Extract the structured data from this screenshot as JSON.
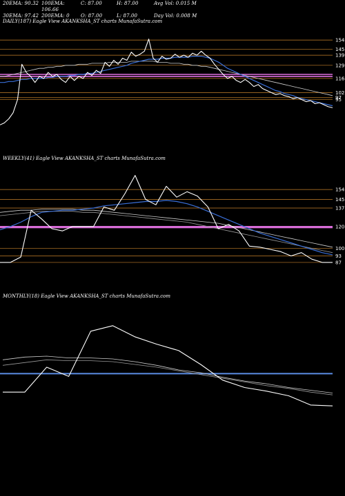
{
  "header": {
    "row1": [
      "20EMA: 90.32",
      "100EMA: 106.66",
      "C: 87.00",
      "H: 87.00",
      "Avg Vol: 0.015 M"
    ],
    "row2": [
      "30EMA: 97.42",
      "200EMA: 0",
      "O: 87.00",
      "L: 87.00",
      "Day Vol: 0.008 M"
    ]
  },
  "colors": {
    "price": "#ffffff",
    "ema_fast": "#3a6fd8",
    "ema_slow": "#cfcfcf",
    "level": "#c8822a",
    "pivot": "#e070e0",
    "monthly_line": "#5b8ee6"
  },
  "chart_data": [
    {
      "type": "line",
      "title": "DAILY(187) Eagle  View  AKANKSHA_ST charts MunafaSutra.com",
      "level_labels": [
        "154",
        "145",
        "139",
        "129",
        "116",
        "102",
        "97",
        "95"
      ],
      "levels": [
        154,
        145,
        139,
        129,
        116,
        102,
        97,
        95
      ],
      "pivot_levels": [
        120,
        118
      ],
      "ylim": [
        60,
        165
      ],
      "series": [
        {
          "role": "price",
          "values": [
            70,
            72,
            76,
            82,
            95,
            130,
            122,
            118,
            112,
            118,
            116,
            122,
            118,
            120,
            115,
            112,
            118,
            114,
            118,
            116,
            122,
            119,
            124,
            121,
            132,
            128,
            134,
            130,
            136,
            134,
            142,
            138,
            140,
            143,
            155,
            136,
            132,
            138,
            135,
            136,
            140,
            137,
            139,
            137,
            141,
            139,
            143,
            139,
            136,
            130,
            125,
            120,
            116,
            118,
            114,
            112,
            115,
            112,
            108,
            110,
            106,
            104,
            102,
            100,
            101,
            99,
            98,
            96,
            97,
            95,
            93,
            94,
            91,
            92,
            90,
            88,
            87
          ]
        },
        {
          "role": "ema_fast",
          "values": [
            112,
            112,
            113,
            113,
            114,
            115,
            115,
            116,
            116,
            116,
            116,
            117,
            117,
            118,
            118,
            118,
            119,
            119,
            120,
            120,
            121,
            121,
            122,
            123,
            124,
            125,
            126,
            127,
            128,
            129,
            131,
            132,
            133,
            134,
            135,
            135,
            135,
            136,
            136,
            136,
            137,
            137,
            137,
            137,
            138,
            138,
            138,
            137,
            136,
            134,
            132,
            129,
            126,
            124,
            122,
            120,
            118,
            116,
            114,
            112,
            110,
            108,
            106,
            104,
            103,
            101,
            100,
            99,
            97,
            96,
            95,
            94,
            93,
            92,
            91,
            90,
            89
          ]
        },
        {
          "role": "ema_slow",
          "values": [
            118,
            118,
            119,
            120,
            121,
            122,
            123,
            124,
            125,
            126,
            126,
            127,
            127,
            128,
            128,
            129,
            129,
            129,
            130,
            130,
            130,
            131,
            131,
            131,
            131,
            132,
            132,
            132,
            132,
            132,
            133,
            133,
            133,
            133,
            133,
            133,
            132,
            132,
            132,
            131,
            131,
            131,
            130,
            130,
            129,
            129,
            128,
            128,
            127,
            126,
            125,
            124,
            123,
            122,
            121,
            120,
            119,
            118,
            117,
            116,
            115,
            114,
            113,
            112,
            111,
            110,
            109,
            108,
            107,
            106,
            105,
            104,
            103,
            102,
            101,
            100,
            99
          ]
        }
      ]
    },
    {
      "type": "line",
      "title": "WEEKLY(41) Eagle  View  AKANKSHA_ST charts MunafaSutra.com",
      "level_labels": [
        "154",
        "145",
        "137",
        "120",
        "100",
        "93",
        "87"
      ],
      "levels": [
        154,
        145,
        137,
        120,
        100,
        93,
        87
      ],
      "pivot_levels": [
        120,
        119
      ],
      "ylim": [
        80,
        175
      ],
      "series": [
        {
          "role": "price",
          "values": [
            87,
            87,
            92,
            135,
            127,
            118,
            116,
            120,
            120,
            120,
            138,
            135,
            150,
            167,
            145,
            140,
            157,
            147,
            152,
            148,
            138,
            118,
            122,
            116,
            102,
            101,
            99,
            97,
            93,
            96,
            90,
            87,
            87
          ]
        },
        {
          "role": "ema_fast",
          "values": [
            117,
            120,
            124,
            129,
            133,
            134,
            135,
            135,
            136,
            137,
            139,
            140,
            141,
            142,
            143,
            143,
            144,
            143,
            141,
            138,
            134,
            130,
            126,
            122,
            118,
            114,
            111,
            108,
            105,
            102,
            99,
            96,
            94
          ]
        },
        {
          "role": "ema_slow",
          "values": [
            133,
            134,
            135,
            135,
            136,
            136,
            136,
            136,
            135,
            135,
            134,
            133,
            132,
            131,
            130,
            129,
            128,
            127,
            126,
            125,
            124,
            123,
            121,
            119,
            117,
            115,
            113,
            111,
            109,
            107,
            105,
            103,
            101
          ]
        },
        {
          "role": "ema_slow2",
          "values": [
            130,
            131,
            132,
            133,
            134,
            134,
            134,
            134,
            133,
            133,
            132,
            131,
            130,
            129,
            128,
            127,
            126,
            125,
            124,
            122,
            120,
            118,
            116,
            114,
            112,
            110,
            108,
            106,
            104,
            102,
            100,
            98,
            96
          ]
        }
      ]
    },
    {
      "type": "line",
      "title": "MONTHLY(18) Eagle  View  AKANKSHA_ST charts MunafaSutra.com",
      "level_labels": [],
      "pivot_levels": [
        125
      ],
      "ylim": [
        70,
        200
      ],
      "series": [
        {
          "role": "price",
          "values": [
            105,
            105,
            132,
            122,
            171,
            177,
            165,
            157,
            150,
            135,
            118,
            110,
            106,
            101,
            91,
            90
          ]
        },
        {
          "role": "ema_slow",
          "values": [
            140,
            143,
            144,
            142,
            142,
            141,
            138,
            134,
            129,
            126,
            121,
            117,
            114,
            110,
            107,
            104
          ]
        },
        {
          "role": "ema_slow2",
          "values": [
            134,
            137,
            140,
            139,
            139,
            138,
            135,
            132,
            128,
            124,
            120,
            116,
            112,
            109,
            105,
            102
          ]
        }
      ]
    }
  ]
}
